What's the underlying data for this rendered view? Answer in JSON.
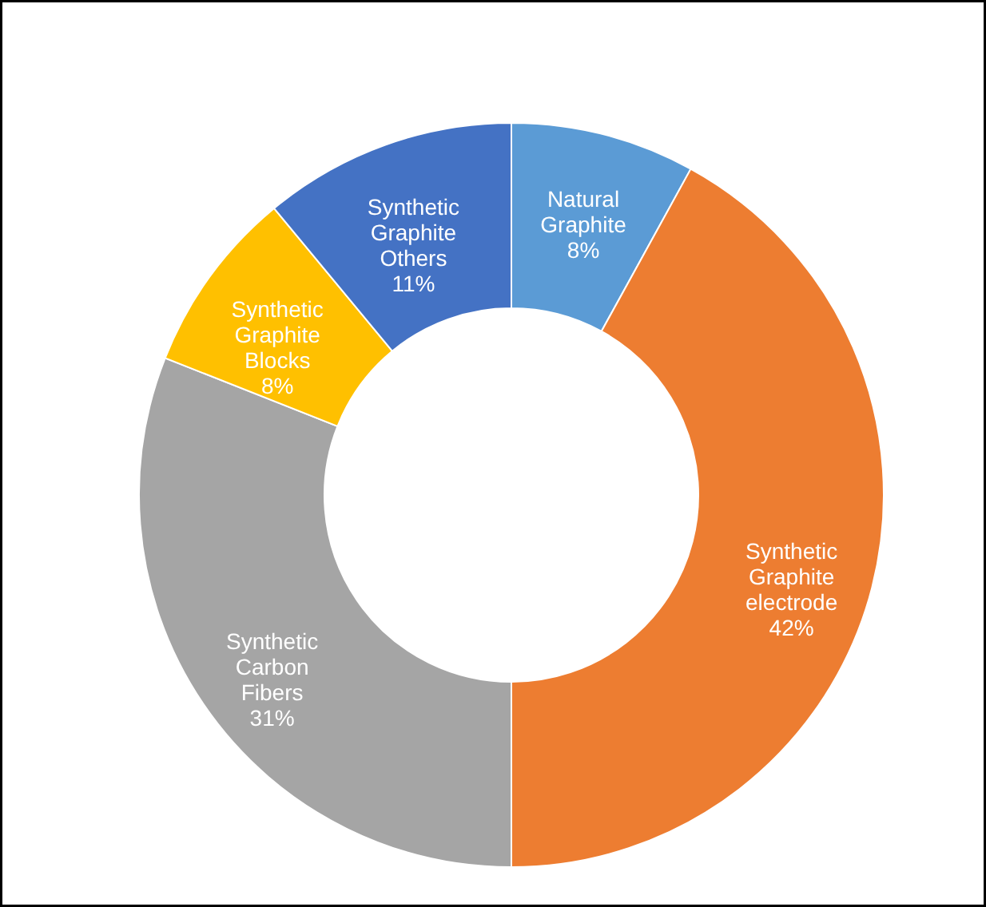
{
  "chart_data": {
    "type": "donut",
    "categories": [
      "Natural Graphite",
      "Synthetic Graphite electrode",
      "Synthetic Carbon Fibers",
      "Synthetic Graphite Blocks",
      "Synthetic Graphite Others"
    ],
    "values": [
      8,
      42,
      31,
      8,
      11
    ],
    "value_labels": [
      "8%",
      "42%",
      "31%",
      "8%",
      "11%"
    ],
    "colors": [
      "#5b9bd5",
      "#ed7d31",
      "#a5a5a5",
      "#ffc000",
      "#4472c4"
    ]
  }
}
